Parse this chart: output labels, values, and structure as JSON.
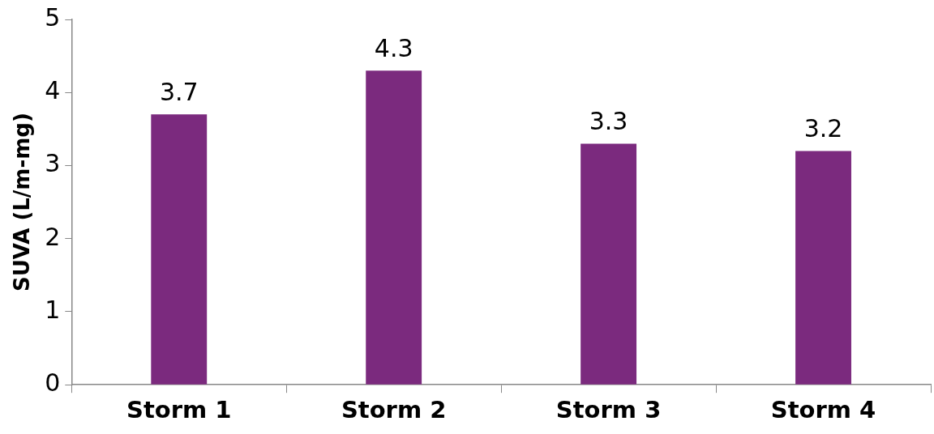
{
  "chart_data": {
    "type": "bar",
    "ylabel": "SUVA (L/m-mg)",
    "categories": [
      "Storm 1",
      "Storm 2",
      "Storm 3",
      "Storm 4"
    ],
    "values": [
      3.7,
      4.3,
      3.3,
      3.2
    ],
    "color": "#7b2a7e",
    "ylim": [
      0,
      5
    ],
    "yticks": [
      0,
      1,
      2,
      3,
      4,
      5
    ],
    "grid": false,
    "legend": false,
    "data_labels": true
  }
}
